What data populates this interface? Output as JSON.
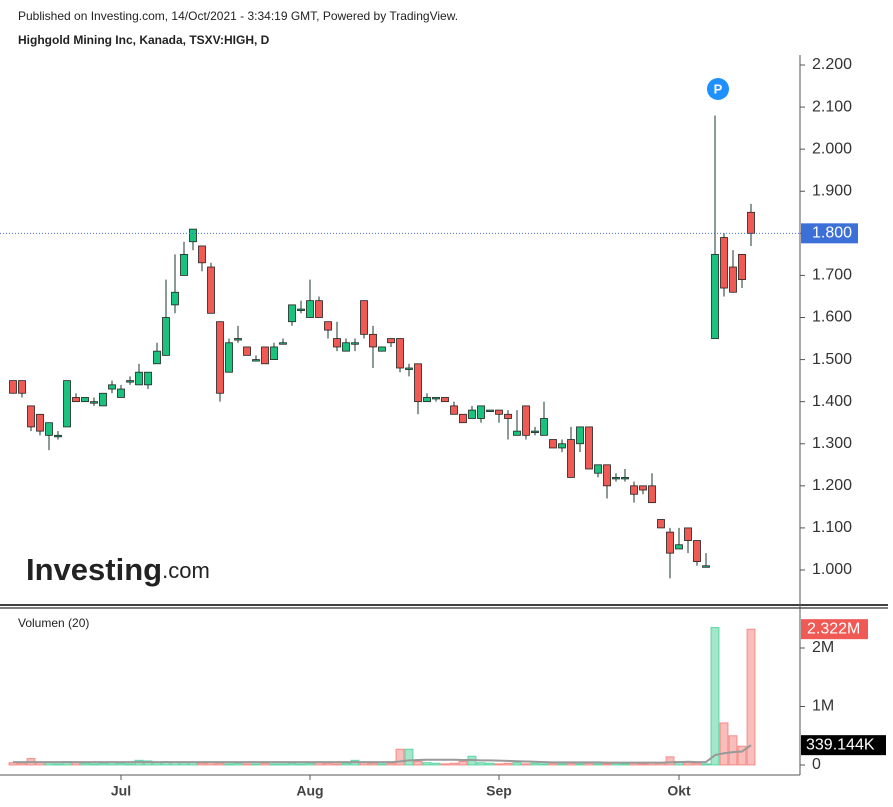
{
  "header": {
    "published": "Published on Investing.com, 14/Oct/2021 - 3:34:19 GMT, Powered by TradingView.",
    "symbol": "Highgold Mining Inc, Kanada, TSXV:HIGH, D"
  },
  "logo": {
    "main": "Investing",
    "suffix": ".com"
  },
  "chart_data": {
    "type": "candlestick",
    "categories": [
      null,
      null,
      null,
      null,
      null,
      null,
      null,
      null,
      null,
      null,
      null,
      null,
      "Jul",
      null,
      null,
      null,
      null,
      null,
      null,
      null,
      null,
      null,
      null,
      null,
      null,
      null,
      null,
      null,
      null,
      null,
      null,
      null,
      null,
      "Aug",
      null,
      null,
      null,
      null,
      null,
      null,
      null,
      null,
      null,
      null,
      null,
      null,
      null,
      null,
      null,
      null,
      null,
      null,
      null,
      null,
      "Sep",
      null,
      null,
      null,
      null,
      null,
      null,
      null,
      null,
      null,
      null,
      null,
      null,
      null,
      null,
      null,
      null,
      null,
      null,
      null,
      "Okt",
      null,
      null,
      null,
      null,
      null,
      null,
      null,
      null
    ],
    "open": [
      1.45,
      1.45,
      1.39,
      1.37,
      1.32,
      1.32,
      1.34,
      1.41,
      1.4,
      1.4,
      1.39,
      1.43,
      1.41,
      1.45,
      1.44,
      1.44,
      1.49,
      1.51,
      1.63,
      1.7,
      1.78,
      1.77,
      1.72,
      1.59,
      1.47,
      1.55,
      1.53,
      1.5,
      1.53,
      1.5,
      1.54,
      1.59,
      1.62,
      1.6,
      1.64,
      1.59,
      1.55,
      1.52,
      1.54,
      1.64,
      1.56,
      1.52,
      1.55,
      1.55,
      1.48,
      1.49,
      1.4,
      1.41,
      1.41,
      1.39,
      1.37,
      1.36,
      1.36,
      1.38,
      1.38,
      1.37,
      1.32,
      1.39,
      1.33,
      1.32,
      1.31,
      1.29,
      1.31,
      1.3,
      1.34,
      1.23,
      1.25,
      1.22,
      1.22,
      1.2,
      1.2,
      1.2,
      1.12,
      1.09,
      1.05,
      1.1,
      1.07,
      1.01,
      1.55,
      1.79,
      1.72,
      1.75,
      1.85
    ],
    "high": [
      1.45,
      1.45,
      1.39,
      1.37,
      1.35,
      1.33,
      1.45,
      1.42,
      1.41,
      1.41,
      1.42,
      1.45,
      1.44,
      1.46,
      1.49,
      1.47,
      1.54,
      1.69,
      1.75,
      1.78,
      1.81,
      1.77,
      1.73,
      1.59,
      1.55,
      1.58,
      1.53,
      1.51,
      1.53,
      1.54,
      1.55,
      1.63,
      1.64,
      1.69,
      1.65,
      1.59,
      1.59,
      1.55,
      1.55,
      1.64,
      1.58,
      1.53,
      1.55,
      1.55,
      1.49,
      1.49,
      1.42,
      1.41,
      1.41,
      1.4,
      1.37,
      1.39,
      1.39,
      1.38,
      1.38,
      1.38,
      1.38,
      1.39,
      1.34,
      1.4,
      1.31,
      1.31,
      1.34,
      1.34,
      1.34,
      1.25,
      1.25,
      1.23,
      1.24,
      1.21,
      1.2,
      1.23,
      1.12,
      1.1,
      1.1,
      1.1,
      1.07,
      1.04,
      2.08,
      1.8,
      1.76,
      1.75,
      1.87
    ],
    "low": [
      1.42,
      1.41,
      1.33,
      1.32,
      1.285,
      1.31,
      1.34,
      1.4,
      1.4,
      1.39,
      1.39,
      1.42,
      1.41,
      1.44,
      1.44,
      1.43,
      1.49,
      1.51,
      1.61,
      1.7,
      1.76,
      1.71,
      1.61,
      1.4,
      1.47,
      1.54,
      1.51,
      1.5,
      1.49,
      1.5,
      1.54,
      1.58,
      1.61,
      1.6,
      1.6,
      1.55,
      1.52,
      1.52,
      1.52,
      1.55,
      1.48,
      1.52,
      1.53,
      1.47,
      1.46,
      1.37,
      1.4,
      1.4,
      1.4,
      1.37,
      1.35,
      1.36,
      1.35,
      1.38,
      1.35,
      1.31,
      1.32,
      1.31,
      1.32,
      1.32,
      1.29,
      1.28,
      1.22,
      1.28,
      1.24,
      1.22,
      1.17,
      1.21,
      1.21,
      1.16,
      1.18,
      1.16,
      1.1,
      0.98,
      1.05,
      1.04,
      1.01,
      1.01,
      1.55,
      1.65,
      1.66,
      1.67,
      1.77
    ],
    "close": [
      1.42,
      1.42,
      1.34,
      1.33,
      1.35,
      1.32,
      1.45,
      1.4,
      1.41,
      1.4,
      1.42,
      1.44,
      1.43,
      1.45,
      1.47,
      1.47,
      1.52,
      1.6,
      1.66,
      1.75,
      1.81,
      1.73,
      1.61,
      1.42,
      1.54,
      1.55,
      1.51,
      1.5,
      1.49,
      1.53,
      1.54,
      1.63,
      1.62,
      1.64,
      1.6,
      1.57,
      1.53,
      1.54,
      1.54,
      1.56,
      1.53,
      1.53,
      1.54,
      1.48,
      1.48,
      1.4,
      1.41,
      1.41,
      1.4,
      1.37,
      1.35,
      1.38,
      1.39,
      1.38,
      1.37,
      1.36,
      1.33,
      1.32,
      1.33,
      1.36,
      1.29,
      1.3,
      1.22,
      1.34,
      1.24,
      1.25,
      1.2,
      1.22,
      1.22,
      1.18,
      1.19,
      1.16,
      1.1,
      1.04,
      1.06,
      1.07,
      1.02,
      1.01,
      1.75,
      1.67,
      1.66,
      1.69,
      1.8
    ],
    "volume": [
      40000,
      30000,
      110000,
      50000,
      40000,
      20000,
      60000,
      40000,
      30000,
      20000,
      30000,
      40000,
      30000,
      20000,
      80000,
      70000,
      40000,
      60000,
      50000,
      40000,
      50000,
      30000,
      40000,
      30000,
      20000,
      30000,
      20000,
      20000,
      30000,
      20000,
      20000,
      30000,
      20000,
      30000,
      40000,
      30000,
      20000,
      30000,
      80000,
      40000,
      30000,
      20000,
      30000,
      270000,
      270000,
      60000,
      40000,
      30000,
      20000,
      30000,
      60000,
      150000,
      40000,
      30000,
      20000,
      30000,
      40000,
      20000,
      30000,
      20000,
      30000,
      20000,
      30000,
      20000,
      30000,
      20000,
      20000,
      30000,
      20000,
      30000,
      20000,
      40000,
      30000,
      140000,
      60000,
      40000,
      30000,
      20000,
      2350000,
      720000,
      500000,
      320000,
      2322000
    ],
    "volume_ma": [
      50000,
      50000,
      50000,
      50000,
      50000,
      50000,
      50000,
      50000,
      50000,
      50000,
      50000,
      50000,
      50000,
      50000,
      50000,
      50000,
      50000,
      50000,
      50000,
      50000,
      50000,
      50000,
      50000,
      50000,
      50000,
      50000,
      50000,
      50000,
      50000,
      50000,
      50000,
      50000,
      50000,
      50000,
      50000,
      50000,
      50000,
      50000,
      50000,
      50000,
      50000,
      50000,
      50000,
      60000,
      80000,
      85000,
      90000,
      90000,
      90000,
      90000,
      85000,
      85000,
      80000,
      80000,
      75000,
      70000,
      65000,
      60000,
      55000,
      50000,
      45000,
      45000,
      45000,
      45000,
      45000,
      45000,
      40000,
      40000,
      40000,
      40000,
      40000,
      40000,
      40000,
      45000,
      50000,
      55000,
      50000,
      50000,
      170000,
      200000,
      220000,
      230000,
      339144
    ],
    "up_color": "#19c37d",
    "down_color": "#f05a54",
    "ma_color": "#999999",
    "ylim": [
      0.94,
      2.22
    ],
    "yticks": [
      {
        "value": 1.0,
        "label": "1.000"
      },
      {
        "value": 1.1,
        "label": "1.100"
      },
      {
        "value": 1.2,
        "label": "1.200"
      },
      {
        "value": 1.3,
        "label": "1.300"
      },
      {
        "value": 1.4,
        "label": "1.400"
      },
      {
        "value": 1.5,
        "label": "1.500"
      },
      {
        "value": 1.6,
        "label": "1.600"
      },
      {
        "value": 1.7,
        "label": "1.700"
      },
      {
        "value": 1.8,
        "label": "1.800"
      },
      {
        "value": 1.9,
        "label": "1.900"
      },
      {
        "value": 2.0,
        "label": "2.000"
      },
      {
        "value": 2.1,
        "label": "2.100"
      },
      {
        "value": 2.2,
        "label": "2.200"
      }
    ],
    "volume_title": "Volumen (20)",
    "y2lim": [
      0,
      2500000
    ],
    "y2ticks": [
      {
        "value": 0,
        "label": "0"
      },
      {
        "value": 1000000,
        "label": "1M"
      },
      {
        "value": 2000000,
        "label": "2M"
      }
    ],
    "price_line_label": "1.800",
    "last_volume_label": "2.322M",
    "last_ma_label": "339.144K",
    "marker": "P"
  }
}
